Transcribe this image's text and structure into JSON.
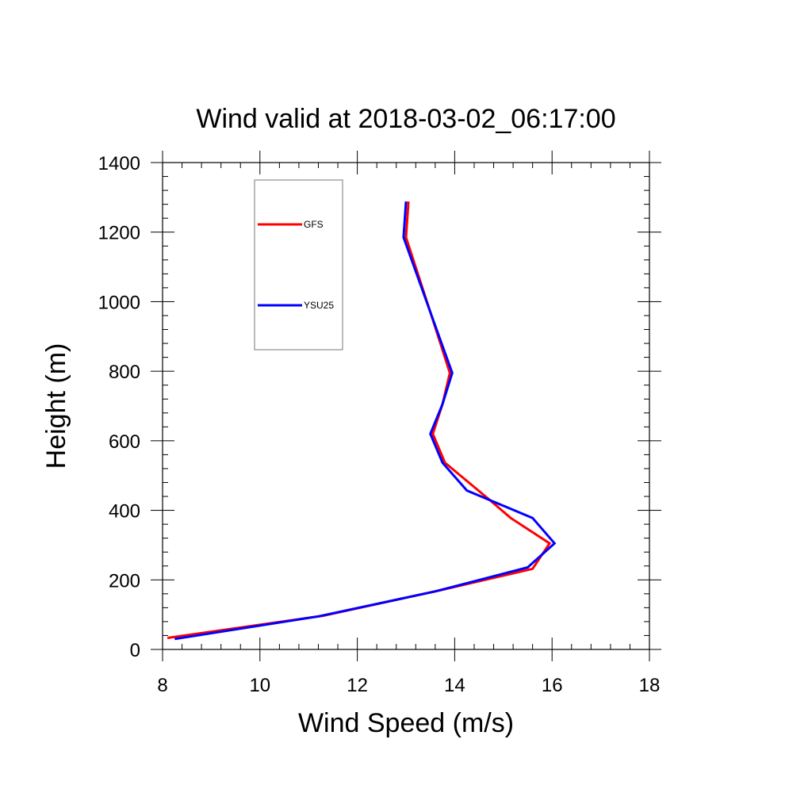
{
  "chart_data": {
    "type": "line",
    "title": "Wind valid at 2018-03-02_06:17:00",
    "xlabel": "Wind Speed (m/s)",
    "ylabel": "Height (m)",
    "xlim": [
      8,
      18
    ],
    "ylim": [
      0,
      1400
    ],
    "x_ticks": [
      "8",
      "10",
      "12",
      "14",
      "16",
      "18"
    ],
    "y_ticks": [
      "0",
      "200",
      "400",
      "600",
      "800",
      "1000",
      "1200",
      "1400"
    ],
    "grid": false,
    "legend_position": "top-left",
    "series": [
      {
        "name": "GFS",
        "color": "#ff0000",
        "points": [
          [
            8.1,
            33
          ],
          [
            11.3,
            97
          ],
          [
            13.7,
            170
          ],
          [
            15.6,
            232
          ],
          [
            15.95,
            305
          ],
          [
            15.15,
            378
          ],
          [
            14.7,
            432
          ],
          [
            13.8,
            537
          ],
          [
            13.55,
            620
          ],
          [
            13.75,
            705
          ],
          [
            13.9,
            795
          ],
          [
            13.5,
            970
          ],
          [
            13.0,
            1185
          ],
          [
            13.05,
            1288
          ]
        ]
      },
      {
        "name": "YSU25",
        "color": "#0000ff",
        "points": [
          [
            8.25,
            30
          ],
          [
            11.2,
            95
          ],
          [
            13.6,
            167
          ],
          [
            15.5,
            236
          ],
          [
            16.05,
            305
          ],
          [
            15.6,
            378
          ],
          [
            14.25,
            457
          ],
          [
            13.75,
            537
          ],
          [
            13.5,
            620
          ],
          [
            13.75,
            705
          ],
          [
            13.95,
            795
          ],
          [
            13.5,
            970
          ],
          [
            12.95,
            1185
          ],
          [
            13.0,
            1288
          ]
        ]
      }
    ]
  }
}
